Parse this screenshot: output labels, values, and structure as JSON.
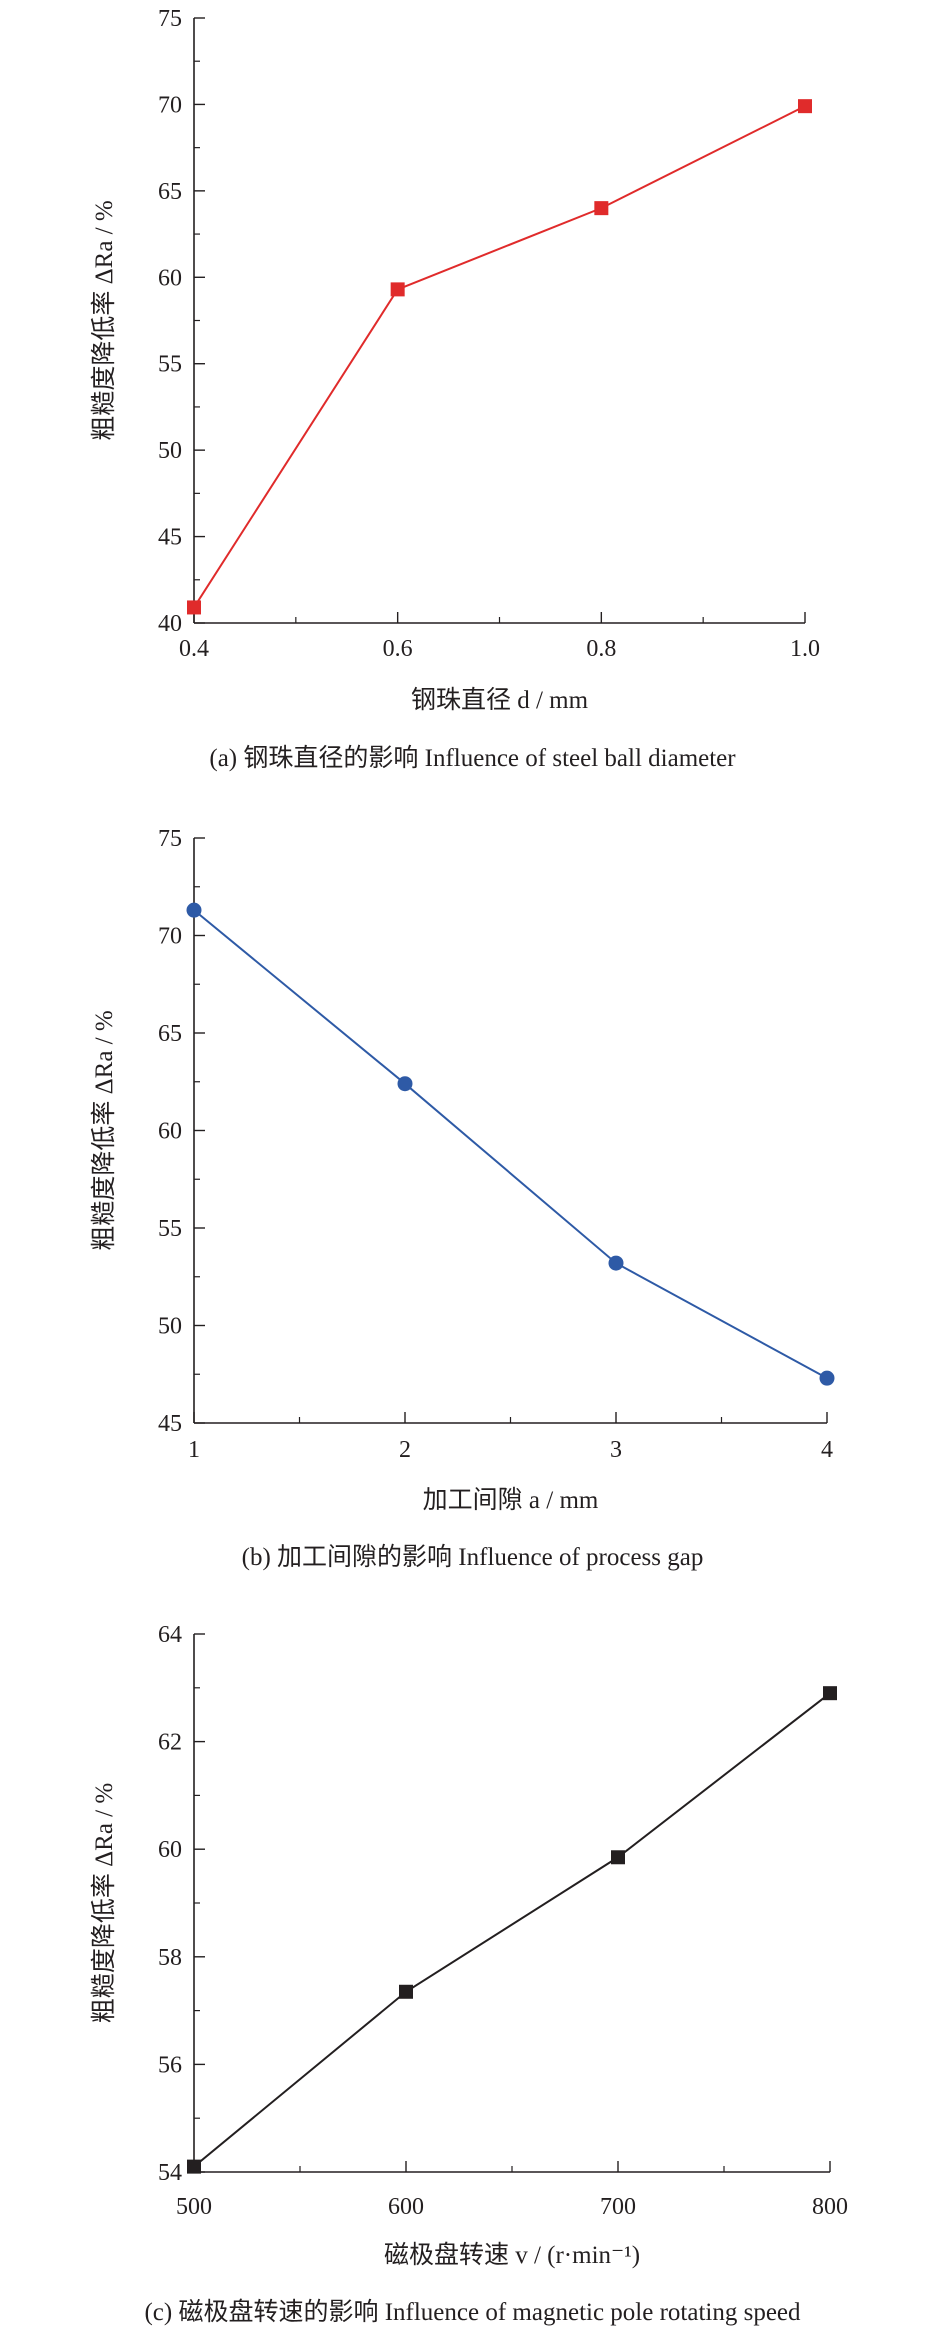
{
  "chart_data": [
    {
      "type": "line",
      "ylabel": "粗糙度降低率 ΔRa / %",
      "xlabel": "钢珠直径 d / mm",
      "caption": "(a) 钢珠直径的影响 Influence of steel ball diameter",
      "x": [
        0.4,
        0.6,
        0.8,
        1.0
      ],
      "series": [
        {
          "values": [
            40.9,
            59.3,
            64.0,
            69.9
          ]
        }
      ],
      "xlim": [
        0.4,
        1.0
      ],
      "ylim": [
        40,
        75
      ],
      "xticks": [
        0.4,
        0.6,
        0.8,
        1.0
      ],
      "xtick_labels": [
        "0.4",
        "0.6",
        "0.8",
        "1.0"
      ],
      "yticks": [
        40,
        45,
        50,
        55,
        60,
        65,
        70,
        75
      ],
      "ytick_labels": [
        "40",
        "45",
        "50",
        "55",
        "60",
        "65",
        "70",
        "75"
      ],
      "marker": "square",
      "color": "#e02b2b",
      "grid": false,
      "legend": "none"
    },
    {
      "type": "line",
      "ylabel": "粗糙度降低率 ΔRa / %",
      "xlabel": "加工间隙 a / mm",
      "caption": "(b) 加工间隙的影响 Influence of process gap",
      "x": [
        1,
        2,
        3,
        4
      ],
      "series": [
        {
          "values": [
            71.3,
            62.4,
            53.2,
            47.3
          ]
        }
      ],
      "xlim": [
        1,
        4
      ],
      "ylim": [
        45,
        75
      ],
      "xticks": [
        1,
        2,
        3,
        4
      ],
      "xtick_labels": [
        "1",
        "2",
        "3",
        "4"
      ],
      "yticks": [
        45,
        50,
        55,
        60,
        65,
        70,
        75
      ],
      "ytick_labels": [
        "45",
        "50",
        "55",
        "60",
        "65",
        "70",
        "75"
      ],
      "marker": "circle",
      "color": "#2e5aa6",
      "grid": false,
      "legend": "none"
    },
    {
      "type": "line",
      "ylabel": "粗糙度降低率 ΔRa / %",
      "xlabel": "磁极盘转速 v / (r·min⁻¹)",
      "caption": "(c) 磁极盘转速的影响 Influence of  magnetic pole rotating speed",
      "x": [
        500,
        600,
        700,
        800
      ],
      "series": [
        {
          "values": [
            54.1,
            57.35,
            59.85,
            62.9
          ]
        }
      ],
      "xlim": [
        500,
        800
      ],
      "ylim": [
        54,
        64
      ],
      "xticks": [
        500,
        600,
        700,
        800
      ],
      "xtick_labels": [
        "500",
        "600",
        "700",
        "800"
      ],
      "yticks": [
        54,
        56,
        58,
        60,
        62,
        64
      ],
      "ytick_labels": [
        "54",
        "56",
        "58",
        "60",
        "62",
        "64"
      ],
      "marker": "square",
      "color": "#231f20",
      "grid": false,
      "legend": "none"
    }
  ]
}
